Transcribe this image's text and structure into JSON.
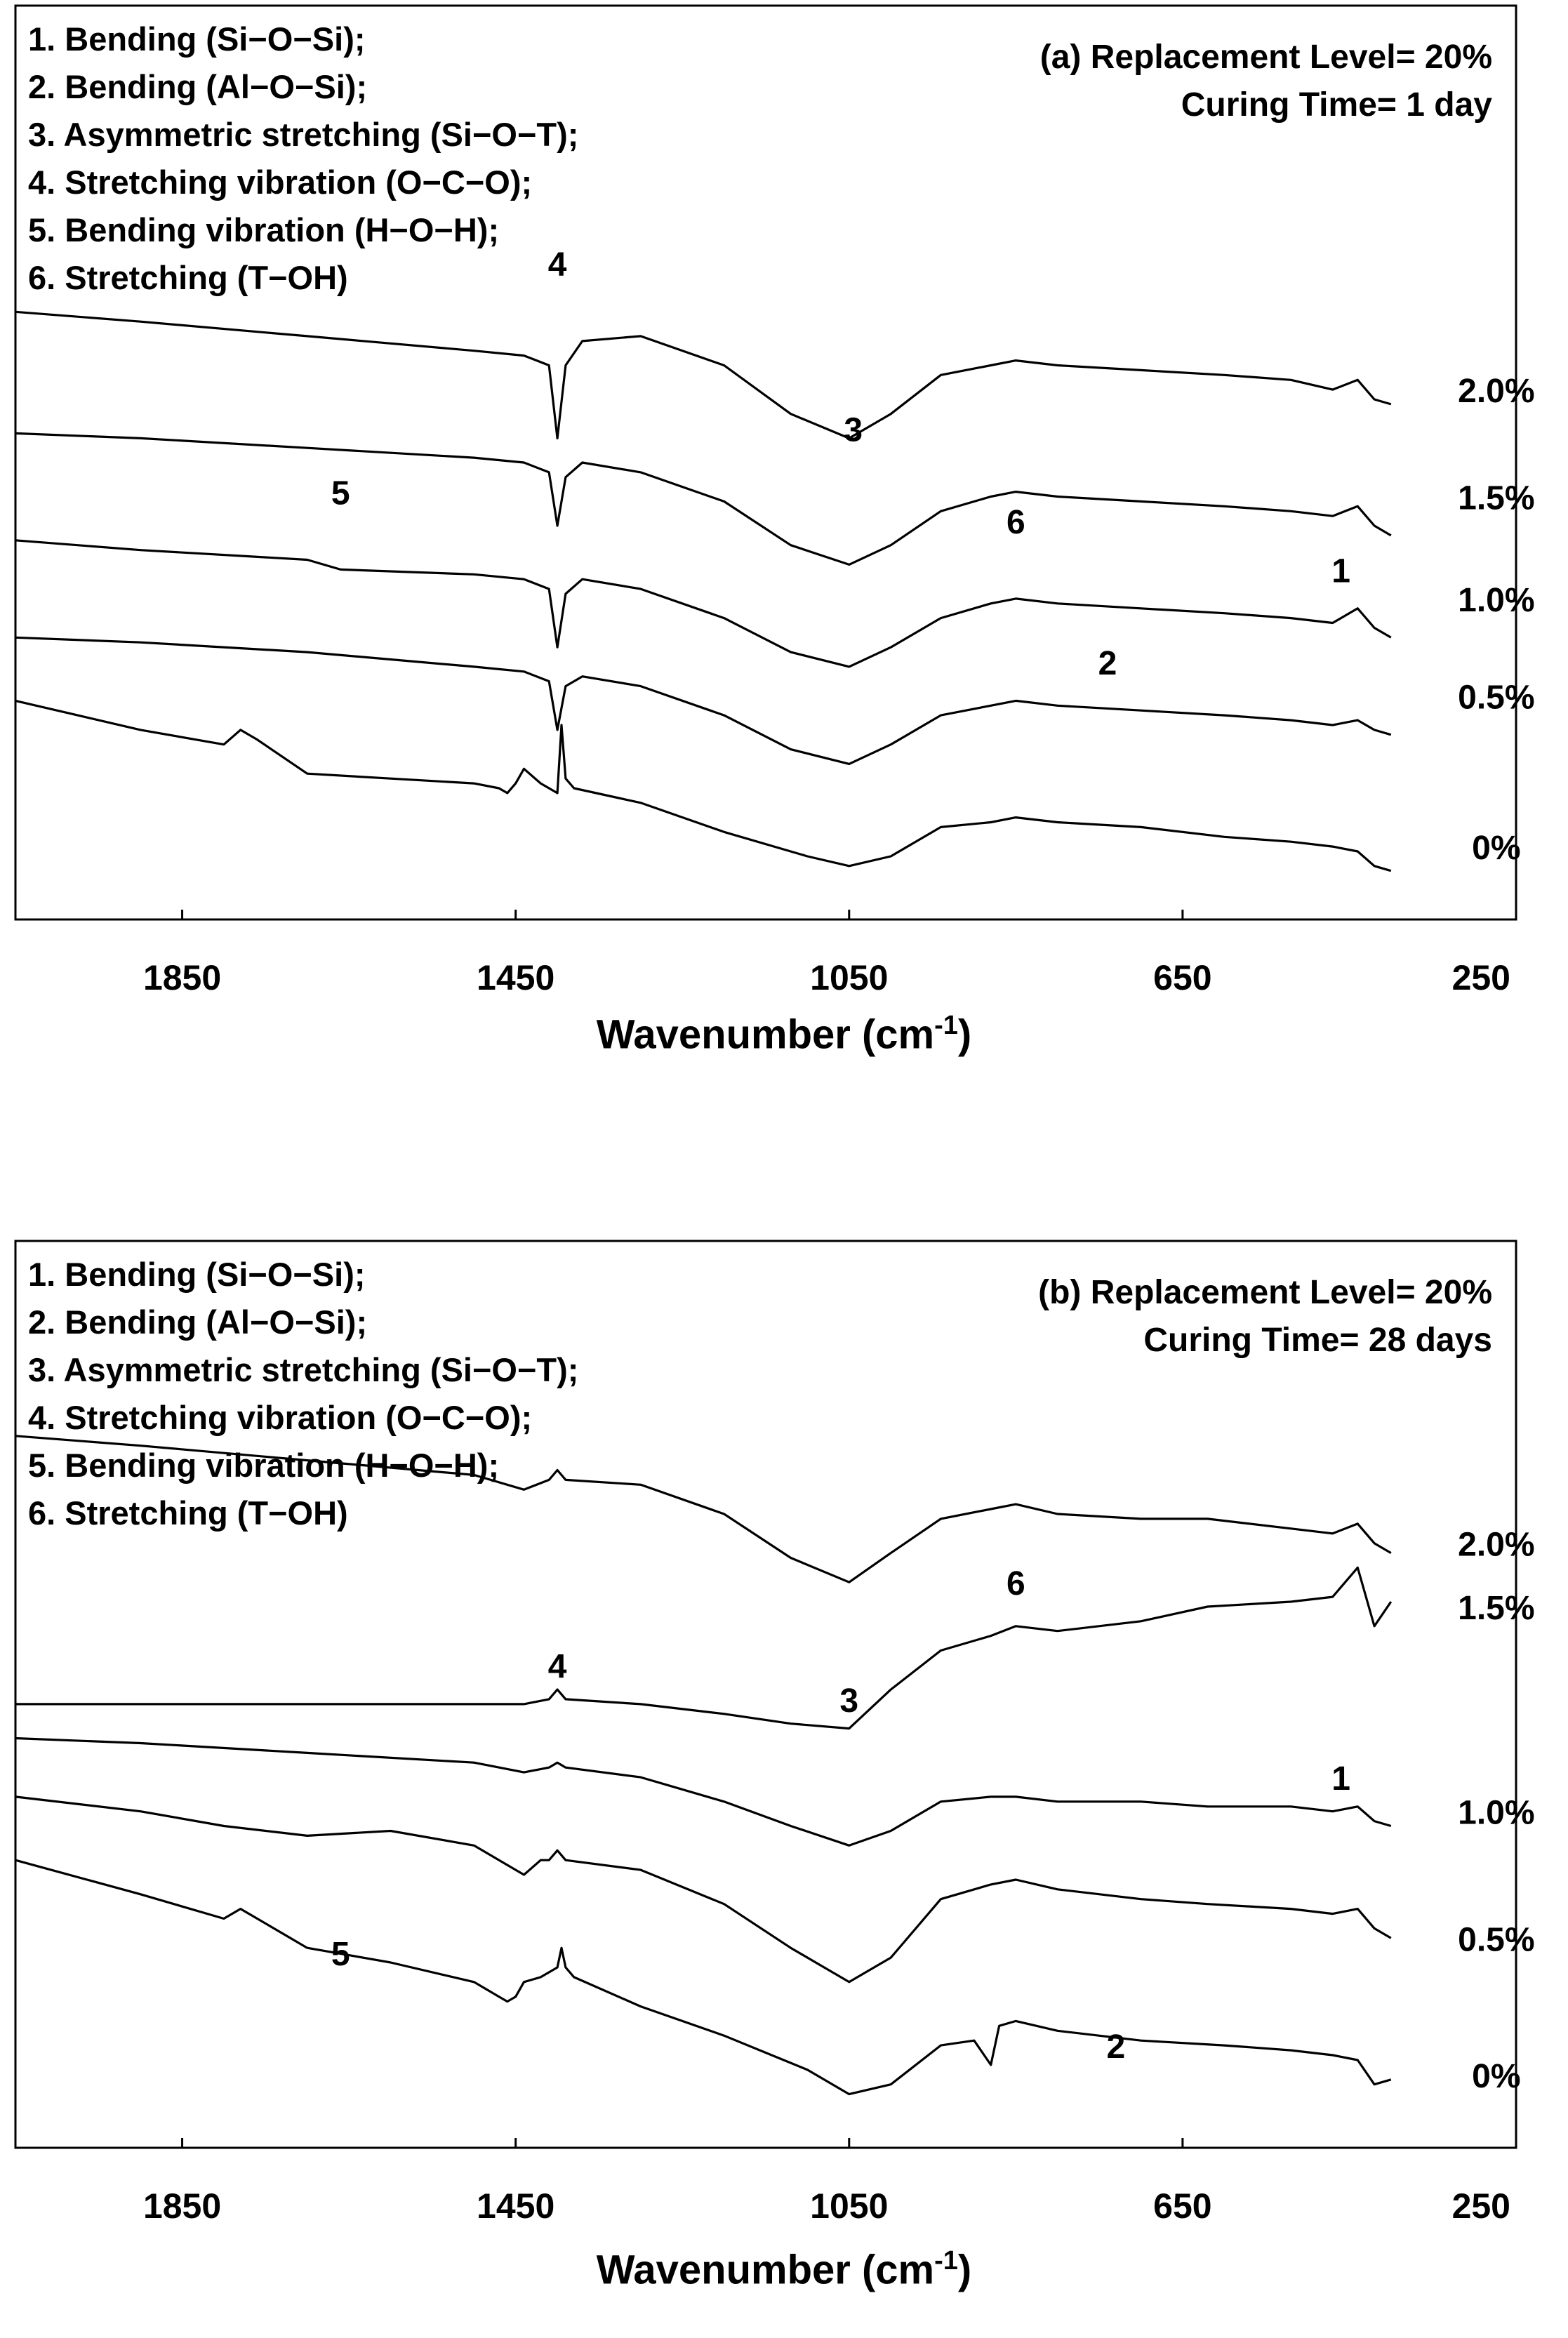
{
  "chart_data": [
    {
      "type": "line",
      "panel": "a",
      "title": "(a) Replacement Level= 20%",
      "subtitle": "Curing Time= 1 day",
      "xlabel": "Wavenumber (cm",
      "xlabel_unit_exp": "-1",
      "xlabel_suffix": ")",
      "xlim": [
        2050,
        250
      ],
      "xticks": [
        1850,
        1450,
        1050,
        650,
        250
      ],
      "xtick_labels": [
        "1850",
        "1450",
        "1050",
        "650",
        "250"
      ],
      "legend": [
        "1. Bending (Si−O−Si);",
        "2. Bending (Al−O−Si);",
        "3. Asymmetric stretching (Si−O−T);",
        "4. Stretching vibration (O−C−O);",
        "5. Bending vibration (H−O−H);",
        "6. Stretching (T−OH)"
      ],
      "annotations": [
        {
          "text": "4",
          "x": 1400,
          "offset": 1.2
        },
        {
          "text": "3",
          "x": 1045,
          "offset": 1.2
        },
        {
          "text": "6",
          "x": 850,
          "offset": 1.1
        },
        {
          "text": "5",
          "x": 1660,
          "offset": 0.8
        },
        {
          "text": "1",
          "x": 460,
          "offset": 0.9
        },
        {
          "text": "2",
          "x": 740,
          "offset": 0.7
        }
      ],
      "annotation_y": [
        5.75,
        4.05,
        3.1,
        3.4,
        2.6,
        1.65
      ],
      "series": [
        {
          "name": "2.0%",
          "label_y": 4.45,
          "x": [
            2050,
            1900,
            1700,
            1500,
            1440,
            1410,
            1400,
            1390,
            1370,
            1300,
            1200,
            1120,
            1050,
            1000,
            940,
            880,
            850,
            800,
            700,
            600,
            520,
            470,
            440,
            420,
            400
          ],
          "y": [
            5.25,
            5.15,
            5.0,
            4.85,
            4.8,
            4.7,
            3.95,
            4.7,
            4.95,
            5.0,
            4.7,
            4.2,
            3.95,
            4.2,
            4.6,
            4.7,
            4.75,
            4.7,
            4.65,
            4.6,
            4.55,
            4.45,
            4.55,
            4.35,
            4.3
          ]
        },
        {
          "name": "1.5%",
          "label_y": 3.35,
          "x": [
            2050,
            1900,
            1700,
            1500,
            1440,
            1410,
            1400,
            1390,
            1370,
            1300,
            1200,
            1120,
            1050,
            1000,
            940,
            880,
            850,
            800,
            700,
            600,
            520,
            470,
            440,
            420,
            400
          ],
          "y": [
            4.0,
            3.95,
            3.85,
            3.75,
            3.7,
            3.6,
            3.05,
            3.55,
            3.7,
            3.6,
            3.3,
            2.85,
            2.65,
            2.85,
            3.2,
            3.35,
            3.4,
            3.35,
            3.3,
            3.25,
            3.2,
            3.15,
            3.25,
            3.05,
            2.95
          ]
        },
        {
          "name": "1.0%",
          "label_y": 2.3,
          "x": [
            2050,
            1900,
            1700,
            1660,
            1500,
            1440,
            1410,
            1400,
            1390,
            1370,
            1300,
            1200,
            1120,
            1050,
            1000,
            940,
            880,
            850,
            800,
            700,
            600,
            520,
            470,
            440,
            420,
            400
          ],
          "y": [
            2.9,
            2.8,
            2.7,
            2.6,
            2.55,
            2.5,
            2.4,
            1.8,
            2.35,
            2.5,
            2.4,
            2.1,
            1.75,
            1.6,
            1.8,
            2.1,
            2.25,
            2.3,
            2.25,
            2.2,
            2.15,
            2.1,
            2.05,
            2.2,
            2.0,
            1.9
          ]
        },
        {
          "name": "0.5%",
          "label_y": 1.3,
          "x": [
            2050,
            1900,
            1700,
            1500,
            1440,
            1410,
            1400,
            1390,
            1370,
            1300,
            1200,
            1120,
            1050,
            1000,
            940,
            880,
            850,
            800,
            700,
            600,
            520,
            470,
            440,
            420,
            400
          ],
          "y": [
            1.9,
            1.85,
            1.75,
            1.6,
            1.55,
            1.45,
            0.95,
            1.4,
            1.5,
            1.4,
            1.1,
            0.75,
            0.6,
            0.8,
            1.1,
            1.2,
            1.25,
            1.2,
            1.15,
            1.1,
            1.05,
            1.0,
            1.05,
            0.95,
            0.9
          ]
        },
        {
          "name": "0%",
          "label_y": -0.25,
          "x": [
            2050,
            1900,
            1800,
            1780,
            1760,
            1700,
            1600,
            1500,
            1470,
            1460,
            1450,
            1440,
            1420,
            1400,
            1395,
            1390,
            1380,
            1300,
            1200,
            1100,
            1050,
            1000,
            940,
            880,
            850,
            800,
            700,
            600,
            520,
            470,
            440,
            420,
            400
          ],
          "y": [
            1.25,
            0.95,
            0.8,
            0.95,
            0.85,
            0.5,
            0.45,
            0.4,
            0.35,
            0.3,
            0.4,
            0.55,
            0.4,
            0.3,
            1.0,
            0.45,
            0.35,
            0.2,
            -0.1,
            -0.35,
            -0.45,
            -0.35,
            -0.05,
            0.0,
            0.05,
            0.0,
            -0.05,
            -0.15,
            -0.2,
            -0.25,
            -0.3,
            -0.45,
            -0.5
          ]
        }
      ]
    },
    {
      "type": "line",
      "panel": "b",
      "title": "(b) Replacement Level= 20%",
      "subtitle": "Curing Time= 28 days",
      "xlabel": "Wavenumber (cm",
      "xlabel_unit_exp": "-1",
      "xlabel_suffix": ")",
      "xlim": [
        2050,
        250
      ],
      "xticks": [
        1850,
        1450,
        1050,
        650,
        250
      ],
      "xtick_labels": [
        "1850",
        "1450",
        "1050",
        "650",
        "250"
      ],
      "legend": [
        "1. Bending (Si−O−Si);",
        "2. Bending (Al−O−Si);",
        "3. Asymmetric stretching (Si−O−T);",
        "4. Stretching vibration (O−C−O);",
        "5. Bending vibration (H−O−H);",
        "6. Stretching (T−OH)"
      ],
      "annotations": [
        {
          "text": "4",
          "x": 1400,
          "offset": 0.9
        },
        {
          "text": "3",
          "x": 1050,
          "offset": 0.7
        },
        {
          "text": "6",
          "x": 850,
          "offset": 0.8
        },
        {
          "text": "5",
          "x": 1660,
          "offset": 0.8
        },
        {
          "text": "1",
          "x": 460,
          "offset": 0.9
        },
        {
          "text": "2",
          "x": 730,
          "offset": 0.7
        }
      ],
      "annotation_y": [
        4.45,
        4.1,
        5.3,
        1.5,
        3.3,
        0.55
      ],
      "series": [
        {
          "name": "2.0%",
          "label_y": 5.7,
          "x": [
            2050,
            1900,
            1700,
            1500,
            1440,
            1410,
            1400,
            1390,
            1300,
            1200,
            1120,
            1050,
            1000,
            940,
            880,
            850,
            800,
            700,
            620,
            520,
            470,
            440,
            420,
            400
          ],
          "y": [
            6.8,
            6.7,
            6.55,
            6.4,
            6.25,
            6.35,
            6.45,
            6.35,
            6.3,
            6.0,
            5.55,
            5.3,
            5.6,
            5.95,
            6.05,
            6.1,
            6.0,
            5.95,
            5.95,
            5.85,
            5.8,
            5.9,
            5.7,
            5.6
          ]
        },
        {
          "name": "1.5%",
          "label_y": 5.05,
          "x": [
            2050,
            1900,
            1700,
            1500,
            1440,
            1410,
            1400,
            1390,
            1300,
            1200,
            1120,
            1050,
            1000,
            940,
            880,
            850,
            800,
            700,
            620,
            520,
            470,
            440,
            420,
            400
          ],
          "y": [
            4.05,
            4.05,
            4.05,
            4.05,
            4.05,
            4.1,
            4.2,
            4.1,
            4.05,
            3.95,
            3.85,
            3.8,
            4.2,
            4.6,
            4.75,
            4.85,
            4.8,
            4.9,
            5.05,
            5.1,
            5.15,
            5.45,
            4.85,
            5.1
          ]
        },
        {
          "name": "1.0%",
          "label_y": 2.95,
          "x": [
            2050,
            1900,
            1700,
            1500,
            1440,
            1410,
            1400,
            1390,
            1300,
            1200,
            1120,
            1050,
            1000,
            940,
            880,
            850,
            800,
            700,
            620,
            520,
            470,
            440,
            420,
            400
          ],
          "y": [
            3.7,
            3.65,
            3.55,
            3.45,
            3.35,
            3.4,
            3.45,
            3.4,
            3.3,
            3.05,
            2.8,
            2.6,
            2.75,
            3.05,
            3.1,
            3.1,
            3.05,
            3.05,
            3.0,
            3.0,
            2.95,
            3.0,
            2.85,
            2.8
          ]
        },
        {
          "name": "0.5%",
          "label_y": 1.65,
          "x": [
            2050,
            1900,
            1800,
            1700,
            1600,
            1500,
            1450,
            1440,
            1420,
            1410,
            1400,
            1390,
            1300,
            1200,
            1120,
            1050,
            1000,
            940,
            880,
            850,
            800,
            700,
            620,
            520,
            470,
            440,
            420,
            400
          ],
          "y": [
            3.1,
            2.95,
            2.8,
            2.7,
            2.75,
            2.6,
            2.35,
            2.3,
            2.45,
            2.45,
            2.55,
            2.45,
            2.35,
            2.0,
            1.55,
            1.2,
            1.45,
            2.05,
            2.2,
            2.25,
            2.15,
            2.05,
            2.0,
            1.95,
            1.9,
            1.95,
            1.75,
            1.65
          ]
        },
        {
          "name": "0%",
          "label_y": 0.25,
          "x": [
            2050,
            1900,
            1800,
            1780,
            1760,
            1700,
            1600,
            1500,
            1470,
            1460,
            1450,
            1440,
            1420,
            1400,
            1395,
            1390,
            1380,
            1300,
            1200,
            1100,
            1050,
            1000,
            940,
            900,
            880,
            870,
            850,
            800,
            700,
            600,
            520,
            470,
            440,
            420,
            400
          ],
          "y": [
            2.45,
            2.1,
            1.85,
            1.95,
            1.85,
            1.55,
            1.4,
            1.2,
            1.05,
            1.0,
            1.05,
            1.2,
            1.25,
            1.35,
            1.55,
            1.35,
            1.25,
            0.95,
            0.65,
            0.3,
            0.05,
            0.15,
            0.55,
            0.6,
            0.35,
            0.75,
            0.8,
            0.7,
            0.6,
            0.55,
            0.5,
            0.45,
            0.4,
            0.15,
            0.2
          ]
        }
      ]
    }
  ]
}
